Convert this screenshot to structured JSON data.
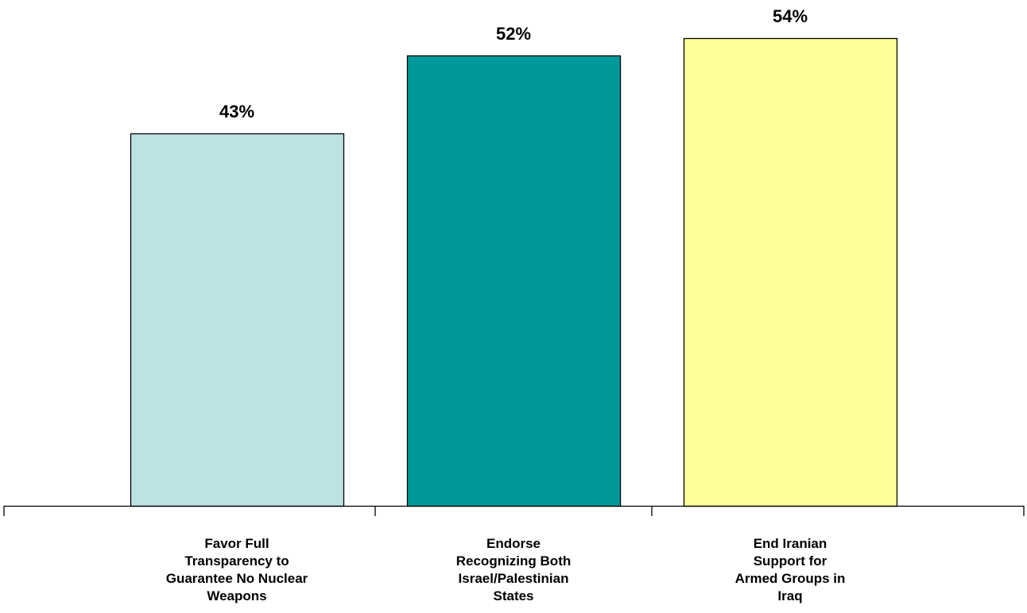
{
  "chart_data": {
    "type": "bar",
    "title": "",
    "xlabel": "",
    "ylabel": "",
    "ylim": [
      0,
      54
    ],
    "grid": false,
    "legend": "none",
    "categories": [
      [
        "Favor Full",
        "Transparency to",
        "Guarantee No Nuclear",
        "Weapons"
      ],
      [
        "Endorse",
        "Recognizing Both",
        "Israel/Palestinian",
        "States"
      ],
      [
        "End Iranian",
        "Support for",
        "Armed Groups in",
        "Iraq"
      ]
    ],
    "values": [
      43,
      52,
      54
    ],
    "value_labels": [
      "43%",
      "52%",
      "54%"
    ],
    "colors": [
      "#bde2e4",
      "#009999",
      "#ffff99"
    ],
    "outline_color": "#000000"
  }
}
